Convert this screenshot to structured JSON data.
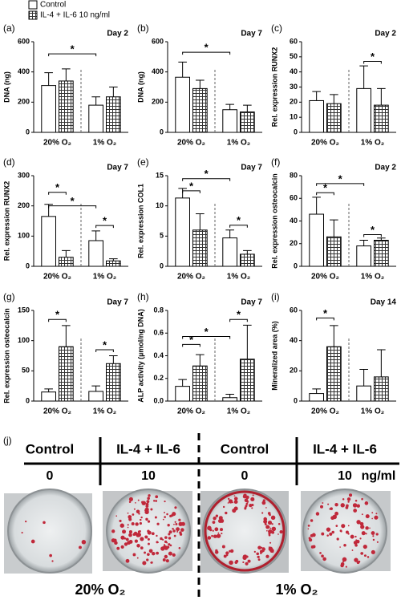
{
  "legend": [
    {
      "name": "Control",
      "color": "#ffffff"
    },
    {
      "name": "IL-4 + IL-6 10 ng/ml",
      "color": "#555555",
      "pattern": "checkered"
    }
  ],
  "chart_data": [
    {
      "type": "bar",
      "label": "(a)",
      "subtitle": "Day 2",
      "ylabel": "DNA (ng)",
      "categories": [
        "20% O₂",
        "1% O₂"
      ],
      "ylim": [
        0,
        600
      ],
      "yticks": [
        0,
        200,
        400,
        600
      ],
      "series": [
        {
          "values": [
            310,
            180
          ],
          "errors": [
            85,
            55
          ]
        },
        {
          "values": [
            340,
            235
          ],
          "errors": [
            80,
            65
          ]
        }
      ],
      "brackets": [
        {
          "label": "*",
          "y": 520,
          "from": [
            0,
            0
          ],
          "to": [
            1,
            0
          ]
        }
      ]
    },
    {
      "type": "bar",
      "label": "(b)",
      "subtitle": "Day 7",
      "ylabel": "DNA (ng)",
      "categories": [
        "20% O₂",
        "1% O₂"
      ],
      "ylim": [
        0,
        600
      ],
      "yticks": [
        0,
        200,
        400,
        600
      ],
      "series": [
        {
          "values": [
            365,
            150
          ],
          "errors": [
            100,
            35
          ]
        },
        {
          "values": [
            290,
            135
          ],
          "errors": [
            55,
            45
          ]
        }
      ],
      "brackets": [
        {
          "label": "*",
          "y": 530,
          "from": [
            0,
            0
          ],
          "to": [
            1,
            0
          ]
        }
      ]
    },
    {
      "type": "bar",
      "label": "(c)",
      "subtitle": "Day 2",
      "ylabel": "Rel. expression RUNX2",
      "categories": [
        "20% O₂",
        "1% O₂"
      ],
      "ylim": [
        0,
        60
      ],
      "yticks": [
        0,
        10,
        20,
        30,
        40,
        50,
        60
      ],
      "series": [
        {
          "values": [
            21,
            29
          ],
          "errors": [
            6,
            15
          ]
        },
        {
          "values": [
            19,
            18
          ],
          "errors": [
            6,
            11
          ]
        }
      ],
      "brackets": [
        {
          "label": "*",
          "y": 47,
          "from": [
            1,
            0
          ],
          "to": [
            1,
            1
          ]
        }
      ]
    },
    {
      "type": "bar",
      "label": "(d)",
      "subtitle": "Day 7",
      "ylabel": "Rel. expression RUNX2",
      "categories": [
        "20% O₂",
        "1% O₂"
      ],
      "ylim": [
        0,
        300
      ],
      "yticks": [
        0,
        100,
        200,
        300
      ],
      "series": [
        {
          "values": [
            165,
            85
          ],
          "errors": [
            40,
            32
          ]
        },
        {
          "values": [
            30,
            18
          ],
          "errors": [
            22,
            7
          ]
        }
      ],
      "brackets": [
        {
          "label": "*",
          "y": 245,
          "from": [
            0,
            0
          ],
          "to": [
            0,
            1
          ]
        },
        {
          "label": "*",
          "y": 200,
          "from": [
            0,
            0
          ],
          "to": [
            1,
            0
          ]
        },
        {
          "label": "*",
          "y": 135,
          "from": [
            1,
            0
          ],
          "to": [
            1,
            1
          ]
        }
      ]
    },
    {
      "type": "bar",
      "label": "(e)",
      "subtitle": "Day 7",
      "ylabel": "Rel. expression COL1",
      "categories": [
        "20% O₂",
        "1% O₂"
      ],
      "ylim": [
        0,
        15
      ],
      "yticks": [
        0,
        5,
        10,
        15
      ],
      "series": [
        {
          "values": [
            11.3,
            4.7
          ],
          "errors": [
            1.6,
            1.3
          ]
        },
        {
          "values": [
            6,
            2
          ],
          "errors": [
            2.7,
            0.6
          ]
        }
      ],
      "brackets": [
        {
          "label": "*",
          "y": 12.5,
          "from": [
            0,
            0
          ],
          "to": [
            0,
            1
          ]
        },
        {
          "label": "*",
          "y": 14.5,
          "from": [
            0,
            0
          ],
          "to": [
            1,
            0
          ]
        },
        {
          "label": "*",
          "y": 6.8,
          "from": [
            1,
            0
          ],
          "to": [
            1,
            1
          ]
        }
      ]
    },
    {
      "type": "bar",
      "label": "(f)",
      "subtitle": "Day 2",
      "ylabel": "Rel. expression osteocalcin",
      "categories": [
        "20% O₂",
        "1% O₂"
      ],
      "ylim": [
        0,
        80
      ],
      "yticks": [
        0,
        20,
        40,
        60,
        80
      ],
      "series": [
        {
          "values": [
            46,
            18
          ],
          "errors": [
            15,
            5
          ]
        },
        {
          "values": [
            26,
            23
          ],
          "errors": [
            15,
            2
          ]
        }
      ],
      "brackets": [
        {
          "label": "*",
          "y": 65,
          "from": [
            0,
            0
          ],
          "to": [
            0,
            1
          ]
        },
        {
          "label": "*",
          "y": 73,
          "from": [
            0,
            0
          ],
          "to": [
            1,
            0
          ]
        },
        {
          "label": "*",
          "y": 28,
          "from": [
            1,
            0
          ],
          "to": [
            1,
            1
          ]
        }
      ]
    },
    {
      "type": "bar",
      "label": "(g)",
      "subtitle": "Day 7",
      "ylabel": "Rel. expression osteocalcin",
      "categories": [
        "20% O₂",
        "1% O₂"
      ],
      "ylim": [
        0,
        150
      ],
      "yticks": [
        0,
        50,
        100,
        150
      ],
      "series": [
        {
          "values": [
            15,
            16
          ],
          "errors": [
            5,
            9
          ]
        },
        {
          "values": [
            90,
            62
          ],
          "errors": [
            35,
            13
          ]
        }
      ],
      "brackets": [
        {
          "label": "*",
          "y": 135,
          "from": [
            0,
            0
          ],
          "to": [
            0,
            1
          ]
        },
        {
          "label": "*",
          "y": 85,
          "from": [
            1,
            0
          ],
          "to": [
            1,
            1
          ]
        }
      ]
    },
    {
      "type": "bar",
      "label": "(h)",
      "subtitle": "Day 7",
      "ylabel": "ALP activity (µmol/ng DNA)",
      "categories": [
        "20% O₂",
        "1% O₂"
      ],
      "ylim": [
        0,
        0.8
      ],
      "yticks": [
        {
          "value": 0,
          "label": "0.0"
        },
        0.2,
        0.4,
        0.6,
        0.8
      ],
      "series": [
        {
          "values": [
            0.13,
            0.03
          ],
          "errors": [
            0.06,
            0.03
          ]
        },
        {
          "values": [
            0.31,
            0.37
          ],
          "errors": [
            0.1,
            0.3
          ]
        }
      ],
      "brackets": [
        {
          "label": "*",
          "y": 0.5,
          "from": [
            0,
            0
          ],
          "to": [
            0,
            1
          ]
        },
        {
          "label": "*",
          "y": 0.57,
          "from": [
            0,
            0
          ],
          "to": [
            1,
            0
          ]
        },
        {
          "label": "*",
          "y": 0.72,
          "from": [
            1,
            0
          ],
          "to": [
            1,
            1
          ]
        }
      ]
    },
    {
      "type": "bar",
      "label": "(i)",
      "subtitle": "Day 14",
      "ylabel": "Mineralized area (%)",
      "categories": [
        "20% O₂",
        "1% O₂"
      ],
      "ylim": [
        0,
        60
      ],
      "yticks": [
        0,
        20,
        40,
        60
      ],
      "series": [
        {
          "values": [
            5,
            10
          ],
          "errors": [
            3,
            11
          ]
        },
        {
          "values": [
            36,
            16
          ],
          "errors": [
            14,
            18
          ]
        }
      ],
      "brackets": [
        {
          "label": "*",
          "y": 55,
          "from": [
            0,
            0
          ],
          "to": [
            0,
            1
          ]
        }
      ]
    }
  ],
  "photo_panel": {
    "label": "(j)",
    "columns": [
      {
        "treatment": "Control",
        "dose": 0
      },
      {
        "treatment": "IL-4 + IL-6",
        "dose": 10
      },
      {
        "treatment": "Control",
        "dose": 0
      },
      {
        "treatment": "IL-4 + IL-6",
        "dose": 10
      }
    ],
    "unit": "ng/ml",
    "groups": [
      "20% O₂",
      "1% O₂"
    ]
  }
}
